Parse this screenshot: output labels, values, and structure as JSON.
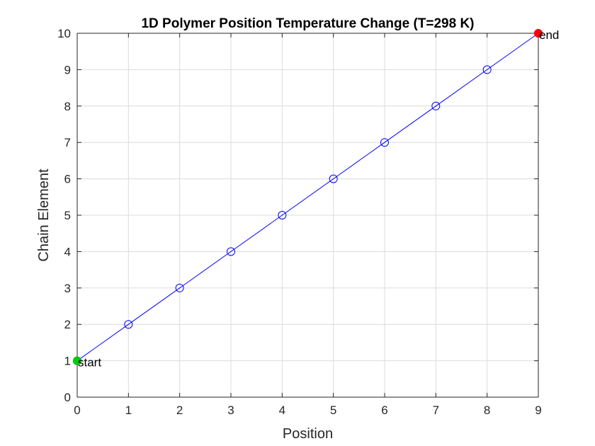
{
  "chart_data": {
    "type": "line",
    "title": "1D Polymer Position Temperature Change (T=298 K)",
    "xlabel": "Position",
    "ylabel": "Chain Element",
    "xlim": [
      0,
      9
    ],
    "ylim": [
      0,
      10
    ],
    "xticks": [
      0,
      1,
      2,
      3,
      4,
      5,
      6,
      7,
      8,
      9
    ],
    "yticks": [
      0,
      1,
      2,
      3,
      4,
      5,
      6,
      7,
      8,
      9,
      10
    ],
    "grid": true,
    "series": [
      {
        "x": [
          0,
          1,
          2,
          3,
          4,
          5,
          6,
          7,
          8,
          9
        ],
        "y": [
          1,
          2,
          3,
          4,
          5,
          6,
          7,
          8,
          9,
          10
        ],
        "color": "#0000ff",
        "marker": "open-circle"
      }
    ],
    "annotations": [
      {
        "text": "start",
        "x": 0,
        "y": 1,
        "marker_color": "#00cc00"
      },
      {
        "text": "end",
        "x": 9,
        "y": 10,
        "marker_color": "#ff0000"
      }
    ]
  }
}
